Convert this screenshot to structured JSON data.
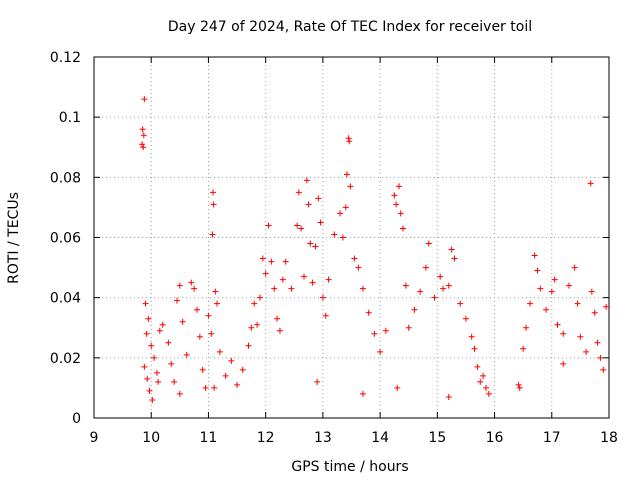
{
  "chart_data": {
    "type": "scatter",
    "title": "Day 247 of 2024, Rate Of TEC Index for receiver toil",
    "xlabel": "GPS time / hours",
    "ylabel": "ROTI / TECUs",
    "xlim": [
      9,
      18
    ],
    "ylim": [
      0,
      0.12
    ],
    "xticks": [
      9,
      10,
      11,
      12,
      13,
      14,
      15,
      16,
      17,
      18
    ],
    "xtick_labels": [
      "9",
      "10",
      "11",
      "12",
      "13",
      "14",
      "15",
      "16",
      "17",
      "18"
    ],
    "yticks": [
      0,
      0.02,
      0.04,
      0.06,
      0.08,
      0.1,
      0.12
    ],
    "ytick_labels": [
      "0",
      "0.02",
      "0.04",
      "0.06",
      "0.08",
      "0.1",
      "0.12"
    ],
    "grid": true,
    "marker": "plus",
    "color": "#ff0000",
    "series": [
      {
        "name": "ROTI",
        "points": [
          [
            9.88,
            0.106
          ],
          [
            9.85,
            0.096
          ],
          [
            9.87,
            0.094
          ],
          [
            9.84,
            0.091
          ],
          [
            9.86,
            0.09
          ],
          [
            9.9,
            0.038
          ],
          [
            9.95,
            0.033
          ],
          [
            9.92,
            0.028
          ],
          [
            10.0,
            0.024
          ],
          [
            10.05,
            0.02
          ],
          [
            9.88,
            0.017
          ],
          [
            9.93,
            0.013
          ],
          [
            9.97,
            0.009
          ],
          [
            10.02,
            0.006
          ],
          [
            10.1,
            0.015
          ],
          [
            10.15,
            0.029
          ],
          [
            10.2,
            0.031
          ],
          [
            10.3,
            0.025
          ],
          [
            10.35,
            0.018
          ],
          [
            10.4,
            0.012
          ],
          [
            10.45,
            0.039
          ],
          [
            10.5,
            0.044
          ],
          [
            10.55,
            0.032
          ],
          [
            10.62,
            0.021
          ],
          [
            10.7,
            0.045
          ],
          [
            10.75,
            0.043
          ],
          [
            10.8,
            0.036
          ],
          [
            10.85,
            0.027
          ],
          [
            10.9,
            0.016
          ],
          [
            10.95,
            0.01
          ],
          [
            11.0,
            0.034
          ],
          [
            11.05,
            0.028
          ],
          [
            11.08,
            0.075
          ],
          [
            11.09,
            0.071
          ],
          [
            11.07,
            0.061
          ],
          [
            11.12,
            0.042
          ],
          [
            11.15,
            0.038
          ],
          [
            11.2,
            0.022
          ],
          [
            11.3,
            0.014
          ],
          [
            11.4,
            0.019
          ],
          [
            11.5,
            0.011
          ],
          [
            11.6,
            0.016
          ],
          [
            11.7,
            0.024
          ],
          [
            11.75,
            0.03
          ],
          [
            11.8,
            0.038
          ],
          [
            11.85,
            0.031
          ],
          [
            11.9,
            0.04
          ],
          [
            11.95,
            0.053
          ],
          [
            12.0,
            0.048
          ],
          [
            12.05,
            0.064
          ],
          [
            12.1,
            0.052
          ],
          [
            12.15,
            0.043
          ],
          [
            12.2,
            0.033
          ],
          [
            12.25,
            0.029
          ],
          [
            12.3,
            0.046
          ],
          [
            12.35,
            0.052
          ],
          [
            12.45,
            0.043
          ],
          [
            12.55,
            0.064
          ],
          [
            12.58,
            0.075
          ],
          [
            12.62,
            0.063
          ],
          [
            12.67,
            0.047
          ],
          [
            12.72,
            0.079
          ],
          [
            12.75,
            0.071
          ],
          [
            12.78,
            0.058
          ],
          [
            12.82,
            0.045
          ],
          [
            12.87,
            0.057
          ],
          [
            12.92,
            0.073
          ],
          [
            12.96,
            0.065
          ],
          [
            13.0,
            0.04
          ],
          [
            13.05,
            0.034
          ],
          [
            13.1,
            0.046
          ],
          [
            13.2,
            0.061
          ],
          [
            13.3,
            0.068
          ],
          [
            13.35,
            0.06
          ],
          [
            13.4,
            0.07
          ],
          [
            13.42,
            0.081
          ],
          [
            13.45,
            0.093
          ],
          [
            13.46,
            0.092
          ],
          [
            13.48,
            0.077
          ],
          [
            13.55,
            0.053
          ],
          [
            13.62,
            0.05
          ],
          [
            13.7,
            0.043
          ],
          [
            13.8,
            0.035
          ],
          [
            13.9,
            0.028
          ],
          [
            14.0,
            0.022
          ],
          [
            14.1,
            0.029
          ],
          [
            14.25,
            0.074
          ],
          [
            14.28,
            0.071
          ],
          [
            14.33,
            0.077
          ],
          [
            14.36,
            0.068
          ],
          [
            14.4,
            0.063
          ],
          [
            14.45,
            0.044
          ],
          [
            14.5,
            0.03
          ],
          [
            14.6,
            0.036
          ],
          [
            14.7,
            0.042
          ],
          [
            14.8,
            0.05
          ],
          [
            14.85,
            0.058
          ],
          [
            14.95,
            0.04
          ],
          [
            15.05,
            0.047
          ],
          [
            15.1,
            0.043
          ],
          [
            15.2,
            0.044
          ],
          [
            15.25,
            0.056
          ],
          [
            15.3,
            0.053
          ],
          [
            15.4,
            0.038
          ],
          [
            15.5,
            0.033
          ],
          [
            15.6,
            0.027
          ],
          [
            15.65,
            0.023
          ],
          [
            15.7,
            0.017
          ],
          [
            15.75,
            0.012
          ],
          [
            15.8,
            0.014
          ],
          [
            15.85,
            0.01
          ],
          [
            15.9,
            0.008
          ],
          [
            16.42,
            0.011
          ],
          [
            16.44,
            0.01
          ],
          [
            16.5,
            0.023
          ],
          [
            16.55,
            0.03
          ],
          [
            16.62,
            0.038
          ],
          [
            16.7,
            0.054
          ],
          [
            16.75,
            0.049
          ],
          [
            16.8,
            0.043
          ],
          [
            16.9,
            0.036
          ],
          [
            17.0,
            0.042
          ],
          [
            17.05,
            0.046
          ],
          [
            17.1,
            0.031
          ],
          [
            17.2,
            0.028
          ],
          [
            17.3,
            0.044
          ],
          [
            17.4,
            0.05
          ],
          [
            17.45,
            0.038
          ],
          [
            17.5,
            0.027
          ],
          [
            17.6,
            0.022
          ],
          [
            17.68,
            0.078
          ],
          [
            17.7,
            0.042
          ],
          [
            17.75,
            0.035
          ],
          [
            17.8,
            0.025
          ],
          [
            17.85,
            0.02
          ],
          [
            17.9,
            0.016
          ],
          [
            17.95,
            0.037
          ],
          [
            10.12,
            0.012
          ],
          [
            10.5,
            0.008
          ],
          [
            11.1,
            0.01
          ],
          [
            12.9,
            0.012
          ],
          [
            13.7,
            0.008
          ],
          [
            14.3,
            0.01
          ],
          [
            15.2,
            0.007
          ],
          [
            17.2,
            0.018
          ]
        ]
      }
    ]
  }
}
